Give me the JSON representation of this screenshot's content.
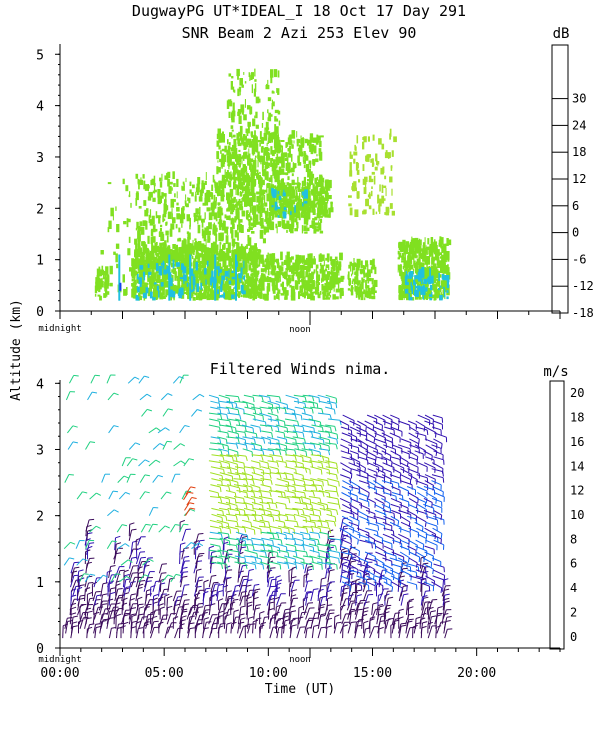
{
  "header": {
    "title_line1": "DugwayPG UT*IDEAL_I  18 Oct 17 Day 291",
    "title_line2": "SNR Beam 2 Azi 253 Elev 90"
  },
  "shared": {
    "ylabel": "Altitude (km)",
    "xlabel": "Time (UT)",
    "midnight_label": "midnight",
    "noon_label": "noon"
  },
  "colors": {
    "snr_main": "#80e020",
    "snr_weak": "#a8e030",
    "snr_cyan": "#20c0e0",
    "snr_blue": "#1040f0"
  },
  "chart_data": [
    {
      "type": "heatmap",
      "title": "SNR Beam 2 Azi 253 Elev 90",
      "ylabel": "Altitude (km)",
      "xlim": [
        0,
        24
      ],
      "ylim": [
        0,
        5.2
      ],
      "yticks": [
        "0",
        "1",
        "2",
        "3",
        "4",
        "5"
      ],
      "colorbar": {
        "unit": "dB",
        "ticks": [
          "-18",
          "-12",
          "-6",
          "0",
          "6",
          "12",
          "18",
          "24",
          "30"
        ],
        "colors": [
          "#80e020",
          "#20e060",
          "#20c0e0",
          "#1040f0",
          "#6020d0",
          "#301060",
          "#e02020",
          "#f08000",
          "#f0c010",
          "#f0e020"
        ]
      },
      "data_extent_hours": [
        1.6,
        18.6
      ]
    },
    {
      "type": "scatter",
      "title": "Filtered Winds nima.",
      "ylabel": "Altitude (km)",
      "xlabel": "Time (UT)",
      "xlim": [
        0,
        24
      ],
      "ylim": [
        0,
        4.05
      ],
      "yticks": [
        "0",
        "1",
        "2",
        "3",
        "4"
      ],
      "xticks": [
        "00:00",
        "05:00",
        "10:00",
        "15:00",
        "20:00"
      ],
      "colorbar": {
        "unit": "m/s",
        "ticks": [
          "0",
          "2",
          "4",
          "6",
          "8",
          "10",
          "12",
          "14",
          "16",
          "18",
          "20"
        ],
        "colors": [
          "#000000",
          "#3a0a5a",
          "#3010b0",
          "#1060f0",
          "#20b0e0",
          "#20d080",
          "#a0e020",
          "#e0c020",
          "#f08010",
          "#e04010",
          "#e02020"
        ]
      },
      "data_extent_hours": [
        0.1,
        18.5
      ]
    }
  ]
}
